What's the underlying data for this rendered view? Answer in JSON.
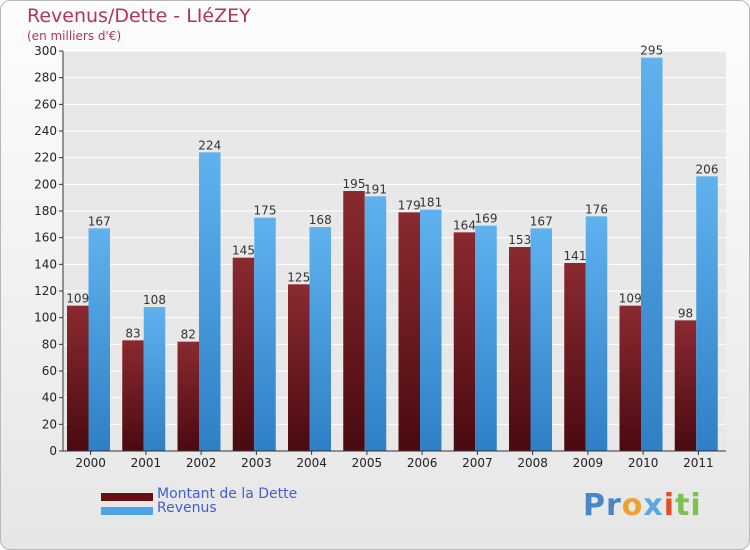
{
  "title": "Revenus/Dette - LIéZEY",
  "subtitle": "(en milliers d'€)",
  "logo": {
    "parts": [
      {
        "text": "Pr",
        "color": "#4a86c8"
      },
      {
        "text": "o",
        "color": "#f0a030"
      },
      {
        "text": "x",
        "color": "#5aa9e0"
      },
      {
        "text": "i",
        "color": "#e84a2a"
      },
      {
        "text": "ti",
        "color": "#7cc050"
      }
    ]
  },
  "colors": {
    "debt": "#7a1a22",
    "revenue": "#4da3e6",
    "axis": "#333333",
    "grid": "#ffffff",
    "legend_text": "#3f5fd4"
  },
  "chart_data": {
    "type": "bar",
    "categories": [
      "2000",
      "2001",
      "2002",
      "2003",
      "2004",
      "2005",
      "2006",
      "2007",
      "2008",
      "2009",
      "2010",
      "2011"
    ],
    "series": [
      {
        "name": "Montant de la Dette",
        "values": [
          109,
          83,
          82,
          145,
          125,
          195,
          179,
          164,
          153,
          141,
          109,
          98
        ]
      },
      {
        "name": "Revenus",
        "values": [
          167,
          108,
          224,
          175,
          168,
          191,
          181,
          169,
          167,
          176,
          295,
          206
        ]
      }
    ],
    "ylim": [
      0,
      300
    ],
    "yticks": [
      0,
      20,
      40,
      60,
      80,
      100,
      120,
      140,
      160,
      180,
      200,
      220,
      240,
      260,
      280,
      300
    ],
    "grid": true,
    "legend": "bottom-left"
  }
}
